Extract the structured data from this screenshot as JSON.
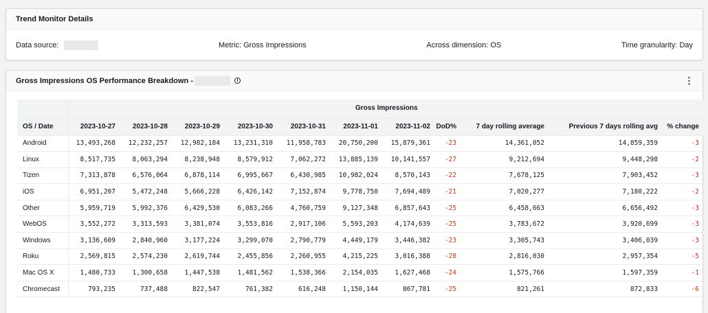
{
  "details": {
    "title": "Trend Monitor Details",
    "data_source_label": "Data source:",
    "metric": "Metric: Gross Impressions",
    "dimension": "Across dimension: OS",
    "granularity": "Time granularity: Day"
  },
  "breakdown": {
    "title": "Gross Impressions OS Performance Breakdown -",
    "info_icon": "i",
    "menu_icon": "⋮",
    "group_header": "Gross Impressions",
    "columns": [
      "OS / Date",
      "2023-10-27",
      "2023-10-28",
      "2023-10-29",
      "2023-10-30",
      "2023-10-31",
      "2023-11-01",
      "2023-11-02",
      "DoD%",
      "7 day rolling average",
      "Previous 7 days rolling avg",
      "% change"
    ],
    "rows": [
      [
        "Android",
        "13,493,268",
        "12,232,257",
        "12,982,184",
        "13,231,310",
        "11,958,783",
        "20,750,200",
        "15,879,361",
        "-23",
        "14,361,052",
        "14,859,359",
        "-3"
      ],
      [
        "Linux",
        "8,517,735",
        "8,063,294",
        "8,238,948",
        "8,579,912",
        "7,062,272",
        "13,885,139",
        "10,141,557",
        "-27",
        "9,212,694",
        "9,448,298",
        "-2"
      ],
      [
        "Tizen",
        "7,313,878",
        "6,576,064",
        "6,878,114",
        "6,995,667",
        "6,430,985",
        "10,982,024",
        "8,570,143",
        "-22",
        "7,678,125",
        "7,903,452",
        "-3"
      ],
      [
        "iOS",
        "6,951,207",
        "5,472,248",
        "5,666,228",
        "6,426,142",
        "7,152,874",
        "9,778,750",
        "7,694,489",
        "-21",
        "7,020,277",
        "7,180,222",
        "-2"
      ],
      [
        "Other",
        "5,959,719",
        "5,992,376",
        "6,429,530",
        "6,083,266",
        "4,760,759",
        "9,127,348",
        "6,857,643",
        "-25",
        "6,458,663",
        "6,656,492",
        "-3"
      ],
      [
        "WebOS",
        "3,552,272",
        "3,313,593",
        "3,381,074",
        "3,553,816",
        "2,917,106",
        "5,593,203",
        "4,174,639",
        "-25",
        "3,783,672",
        "3,920,699",
        "-3"
      ],
      [
        "Windows",
        "3,136,609",
        "2,840,960",
        "3,177,224",
        "3,299,070",
        "2,790,779",
        "4,449,179",
        "3,446,382",
        "-23",
        "3,305,743",
        "3,406,039",
        "-3"
      ],
      [
        "Roku",
        "2,569,815",
        "2,574,230",
        "2,619,744",
        "2,455,856",
        "2,260,955",
        "4,215,225",
        "3,016,388",
        "-28",
        "2,816,030",
        "2,957,354",
        "-5"
      ],
      [
        "Mac OS X",
        "1,480,733",
        "1,300,658",
        "1,447,538",
        "1,481,562",
        "1,538,366",
        "2,154,035",
        "1,627,468",
        "-24",
        "1,575,766",
        "1,597,359",
        "-1"
      ],
      [
        "Chromecast",
        "793,235",
        "737,488",
        "822,547",
        "761,382",
        "616,248",
        "1,150,144",
        "867,781",
        "-25",
        "821,261",
        "872,833",
        "-6"
      ]
    ]
  },
  "colors": {
    "negative": "#d13212",
    "header_bg": "#f2f3f3"
  }
}
